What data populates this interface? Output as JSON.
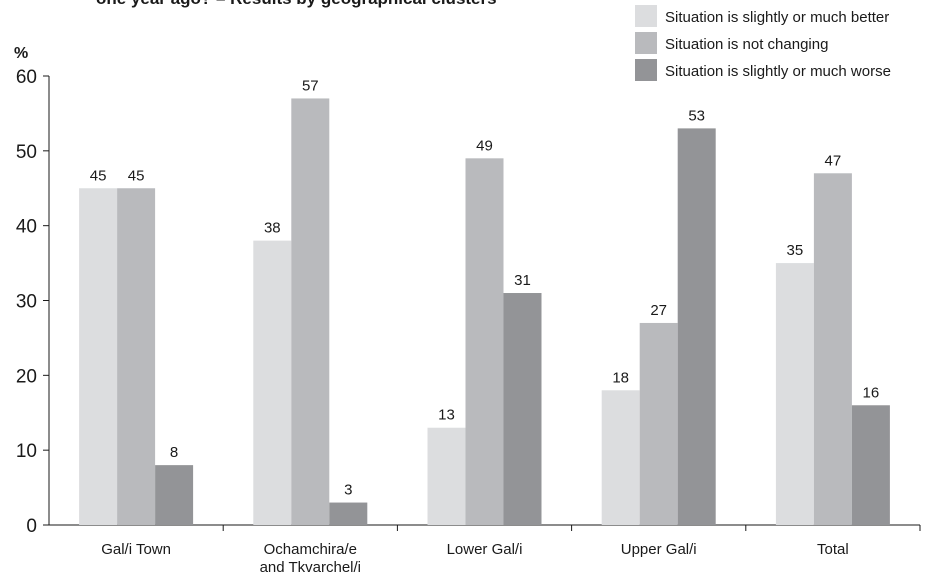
{
  "chart_data": {
    "type": "bar",
    "title": "one year ago? – Results by geographical clusters",
    "ylabel": "%",
    "ylim": [
      0,
      60
    ],
    "yticks": [
      0,
      10,
      20,
      30,
      40,
      50,
      60
    ],
    "grid": false,
    "legend_position": "top-right",
    "categories": [
      [
        "Gal/i Town"
      ],
      [
        "Ochamchira/e",
        "and Tkvarchel/i"
      ],
      [
        "Lower Gal/i"
      ],
      [
        "Upper Gal/i"
      ],
      [
        "Total"
      ]
    ],
    "series": [
      {
        "name": "Situation is slightly or much better",
        "color": "#dcdddf",
        "values": [
          45,
          38,
          13,
          18,
          35
        ]
      },
      {
        "name": "Situation is not changing",
        "color": "#b9babd",
        "values": [
          45,
          57,
          49,
          27,
          47
        ]
      },
      {
        "name": "Situation is slightly or much worse",
        "color": "#939497",
        "values": [
          8,
          3,
          31,
          53,
          16
        ]
      }
    ]
  }
}
